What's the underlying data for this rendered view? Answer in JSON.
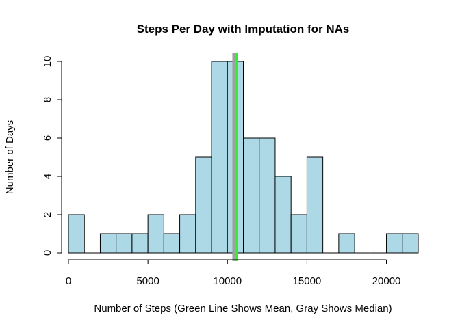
{
  "chart_data": {
    "type": "bar",
    "title": "Steps Per Day with Imputation for NAs",
    "xlabel": "Number of Steps (Green Line Shows Mean, Gray Shows Median)",
    "ylabel": "Number of Days",
    "bin_width": 1000,
    "bins": [
      {
        "start": 0,
        "count": 2
      },
      {
        "start": 1000,
        "count": 0
      },
      {
        "start": 2000,
        "count": 1
      },
      {
        "start": 3000,
        "count": 1
      },
      {
        "start": 4000,
        "count": 1
      },
      {
        "start": 5000,
        "count": 2
      },
      {
        "start": 6000,
        "count": 1
      },
      {
        "start": 7000,
        "count": 2
      },
      {
        "start": 8000,
        "count": 5
      },
      {
        "start": 9000,
        "count": 10
      },
      {
        "start": 10000,
        "count": 10
      },
      {
        "start": 11000,
        "count": 6
      },
      {
        "start": 12000,
        "count": 6
      },
      {
        "start": 13000,
        "count": 4
      },
      {
        "start": 14000,
        "count": 2
      },
      {
        "start": 15000,
        "count": 5
      },
      {
        "start": 16000,
        "count": 0
      },
      {
        "start": 17000,
        "count": 1
      },
      {
        "start": 18000,
        "count": 0
      },
      {
        "start": 19000,
        "count": 0
      },
      {
        "start": 20000,
        "count": 1
      },
      {
        "start": 21000,
        "count": 1
      }
    ],
    "xlim": [
      0,
      22000
    ],
    "ylim": [
      0,
      10
    ],
    "x_ticks": [
      0,
      5000,
      10000,
      15000,
      20000
    ],
    "x_tick_labels": [
      "0",
      "5000",
      "10000",
      "15000",
      "20000"
    ],
    "y_ticks": [
      0,
      2,
      4,
      6,
      8,
      10
    ],
    "y_tick_labels": [
      "0",
      "2",
      "4",
      "6",
      "8",
      "10"
    ],
    "reference_lines": [
      {
        "label": "Median",
        "value": 10395,
        "color": "#a0a0a0"
      },
      {
        "label": "Mean",
        "value": 10581,
        "color": "#33ee33"
      }
    ],
    "bar_fill": "#add8e6",
    "bar_stroke": "#000000",
    "grid": false
  }
}
